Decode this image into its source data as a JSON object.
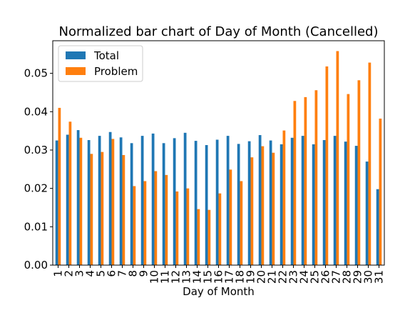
{
  "chart_data": {
    "type": "bar",
    "title": "Normalized bar chart of Day of Month (Cancelled)",
    "xlabel": "Day of Month",
    "ylabel": "",
    "ylim": [
      0,
      0.0585
    ],
    "yticks": [
      "0.00",
      "0.01",
      "0.02",
      "0.03",
      "0.04",
      "0.05"
    ],
    "grid": false,
    "legend_position": "upper-left",
    "categories": [
      "1",
      "2",
      "3",
      "4",
      "5",
      "6",
      "7",
      "8",
      "9",
      "10",
      "11",
      "12",
      "13",
      "14",
      "15",
      "16",
      "17",
      "18",
      "19",
      "20",
      "21",
      "22",
      "23",
      "24",
      "25",
      "26",
      "27",
      "28",
      "29",
      "30",
      "31"
    ],
    "series": [
      {
        "name": "Total",
        "color": "#1f77b4",
        "values": [
          0.0325,
          0.034,
          0.0352,
          0.0326,
          0.0337,
          0.0347,
          0.0333,
          0.0318,
          0.0337,
          0.0343,
          0.0318,
          0.0331,
          0.0345,
          0.0324,
          0.0313,
          0.0327,
          0.0337,
          0.0316,
          0.0323,
          0.0339,
          0.0325,
          0.0315,
          0.0332,
          0.0337,
          0.0315,
          0.0326,
          0.0337,
          0.0322,
          0.0311,
          0.027,
          0.0198
        ]
      },
      {
        "name": "Problem",
        "color": "#ff7f0e",
        "values": [
          0.041,
          0.0374,
          0.0332,
          0.029,
          0.0295,
          0.0329,
          0.0287,
          0.0206,
          0.0219,
          0.0245,
          0.0235,
          0.0192,
          0.02,
          0.0146,
          0.0144,
          0.0187,
          0.0249,
          0.0219,
          0.0281,
          0.031,
          0.0293,
          0.0351,
          0.0428,
          0.0438,
          0.0456,
          0.0518,
          0.0558,
          0.0446,
          0.0482,
          0.0528,
          0.0382
        ]
      }
    ]
  }
}
